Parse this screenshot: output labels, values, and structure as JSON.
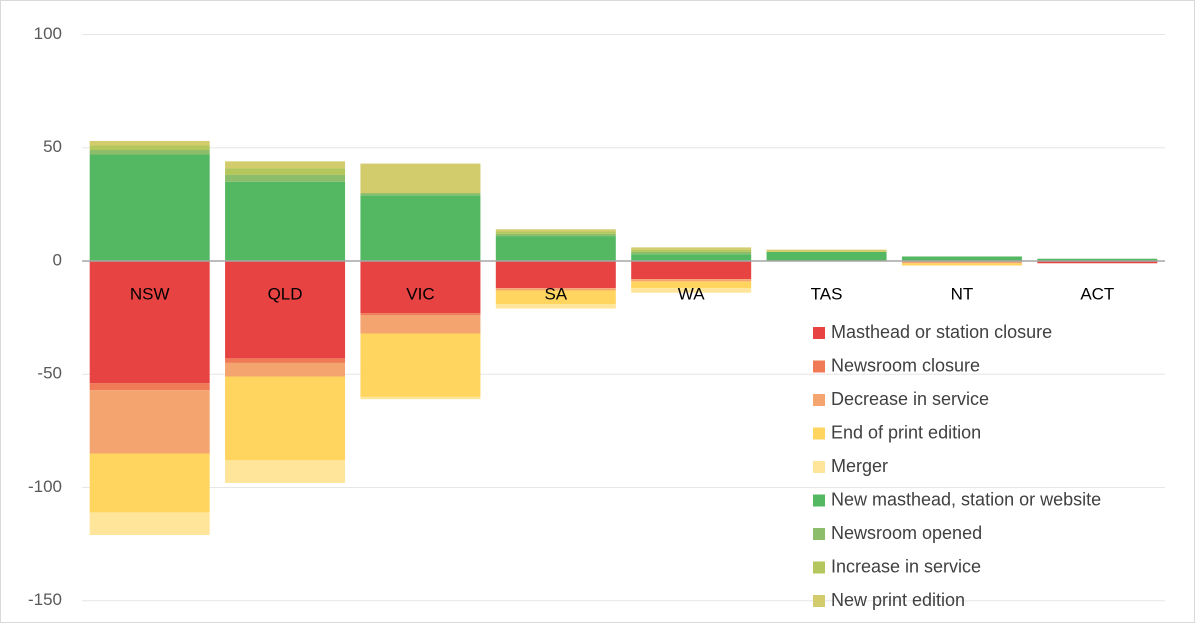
{
  "chart_data": {
    "type": "bar",
    "stacked": true,
    "categories": [
      "NSW",
      "QLD",
      "VIC",
      "SA",
      "WA",
      "TAS",
      "NT",
      "ACT"
    ],
    "series": [
      {
        "name": "Masthead or station closure",
        "color": "#e84343",
        "values": [
          -54,
          -43,
          -23,
          -12,
          -8,
          0,
          0,
          -1
        ]
      },
      {
        "name": "Newsroom closure",
        "color": "#ef7a55",
        "values": [
          -3,
          -2,
          -1,
          0,
          0,
          0,
          0,
          0
        ]
      },
      {
        "name": "Decrease in service",
        "color": "#f4a46e",
        "values": [
          -28,
          -6,
          -8,
          -1,
          -1,
          0,
          -1,
          0
        ]
      },
      {
        "name": "End of print edition",
        "color": "#ffd45f",
        "values": [
          -26,
          -37,
          -28,
          -6,
          -3,
          0,
          -1,
          0
        ]
      },
      {
        "name": "Merger",
        "color": "#ffe59a",
        "values": [
          -10,
          -10,
          -1,
          -2,
          -2,
          0,
          0,
          0
        ]
      },
      {
        "name": "New masthead, station or website",
        "color": "#54b863",
        "values": [
          47,
          35,
          29,
          11,
          3,
          4,
          2,
          1
        ]
      },
      {
        "name": "Newsroom opened",
        "color": "#8cbd6a",
        "values": [
          2,
          3,
          1,
          1,
          1,
          0,
          0,
          0
        ]
      },
      {
        "name": "Increase in service",
        "color": "#b4c75d",
        "values": [
          2,
          3,
          0,
          1,
          1,
          0,
          0,
          0
        ]
      },
      {
        "name": "New print edition",
        "color": "#d2cc6c",
        "values": [
          2,
          3,
          13,
          1,
          1,
          1,
          0,
          0
        ]
      }
    ],
    "ylim": [
      -160,
      110
    ],
    "yticks": [
      -150,
      -100,
      -50,
      0,
      50,
      100
    ],
    "grid": true,
    "legend": "bottom-right"
  }
}
